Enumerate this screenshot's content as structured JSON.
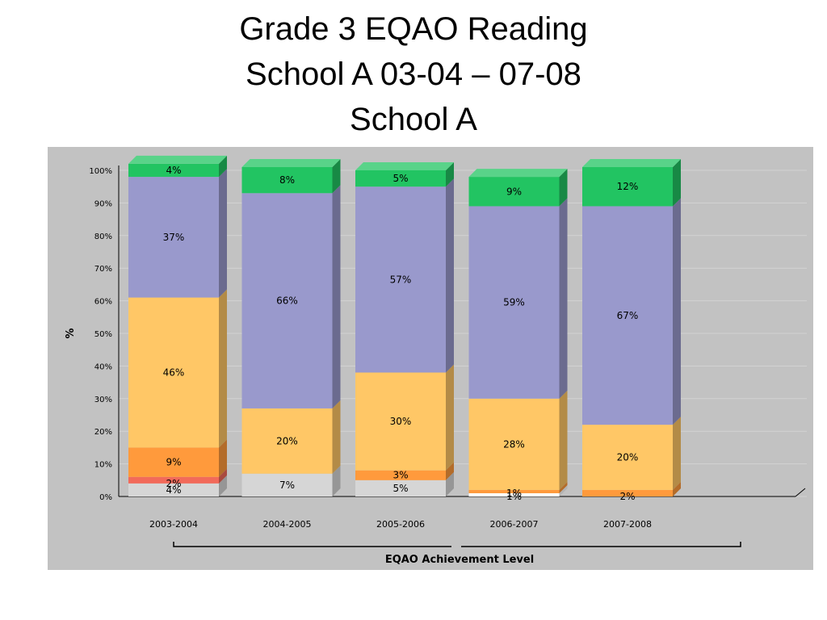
{
  "title": {
    "line1": "Grade 3 EQAO Reading",
    "line2": "School A 03-04 – 07-08",
    "line3": "School A"
  },
  "chart_data": {
    "type": "bar",
    "stacked": true,
    "categories": [
      "2003-2004",
      "2004-2005",
      "2005-2006",
      "2006-2007",
      "2007-2008"
    ],
    "xlabel": "EQAO Achievement Level",
    "ylabel": "%",
    "ylim": [
      0,
      100
    ],
    "yticks": [
      "0%",
      "10%",
      "20%",
      "30%",
      "40%",
      "50%",
      "60%",
      "70%",
      "80%",
      "90%",
      "100%"
    ],
    "grid": true,
    "series": [
      {
        "color": "#ffffff",
        "values": [
          0,
          0,
          0,
          1,
          0
        ],
        "labels": [
          "",
          "",
          "",
          "1%",
          ""
        ]
      },
      {
        "color": "#d6d6d6",
        "values": [
          4,
          7,
          5,
          0,
          0
        ],
        "labels": [
          "4%",
          "7%",
          "5%",
          "",
          ""
        ]
      },
      {
        "color": "#f26a5a",
        "values": [
          2,
          0,
          0,
          0,
          0
        ],
        "labels": [
          "2%",
          "",
          "",
          "",
          ""
        ]
      },
      {
        "color": "#ff9a3c",
        "values": [
          9,
          0,
          3,
          1,
          2
        ],
        "labels": [
          "9%",
          "",
          "3%",
          "1%",
          "2%"
        ]
      },
      {
        "color": "#ffc766",
        "values": [
          46,
          20,
          30,
          28,
          20
        ],
        "labels": [
          "46%",
          "20%",
          "30%",
          "28%",
          "20%"
        ]
      },
      {
        "color": "#9999cc",
        "values": [
          37,
          66,
          57,
          59,
          67
        ],
        "labels": [
          "37%",
          "66%",
          "57%",
          "59%",
          "67%"
        ]
      },
      {
        "color": "#22c462",
        "values": [
          4,
          8,
          5,
          9,
          12
        ],
        "labels": [
          "4%",
          "8%",
          "5%",
          "9%",
          "12%"
        ]
      }
    ]
  }
}
